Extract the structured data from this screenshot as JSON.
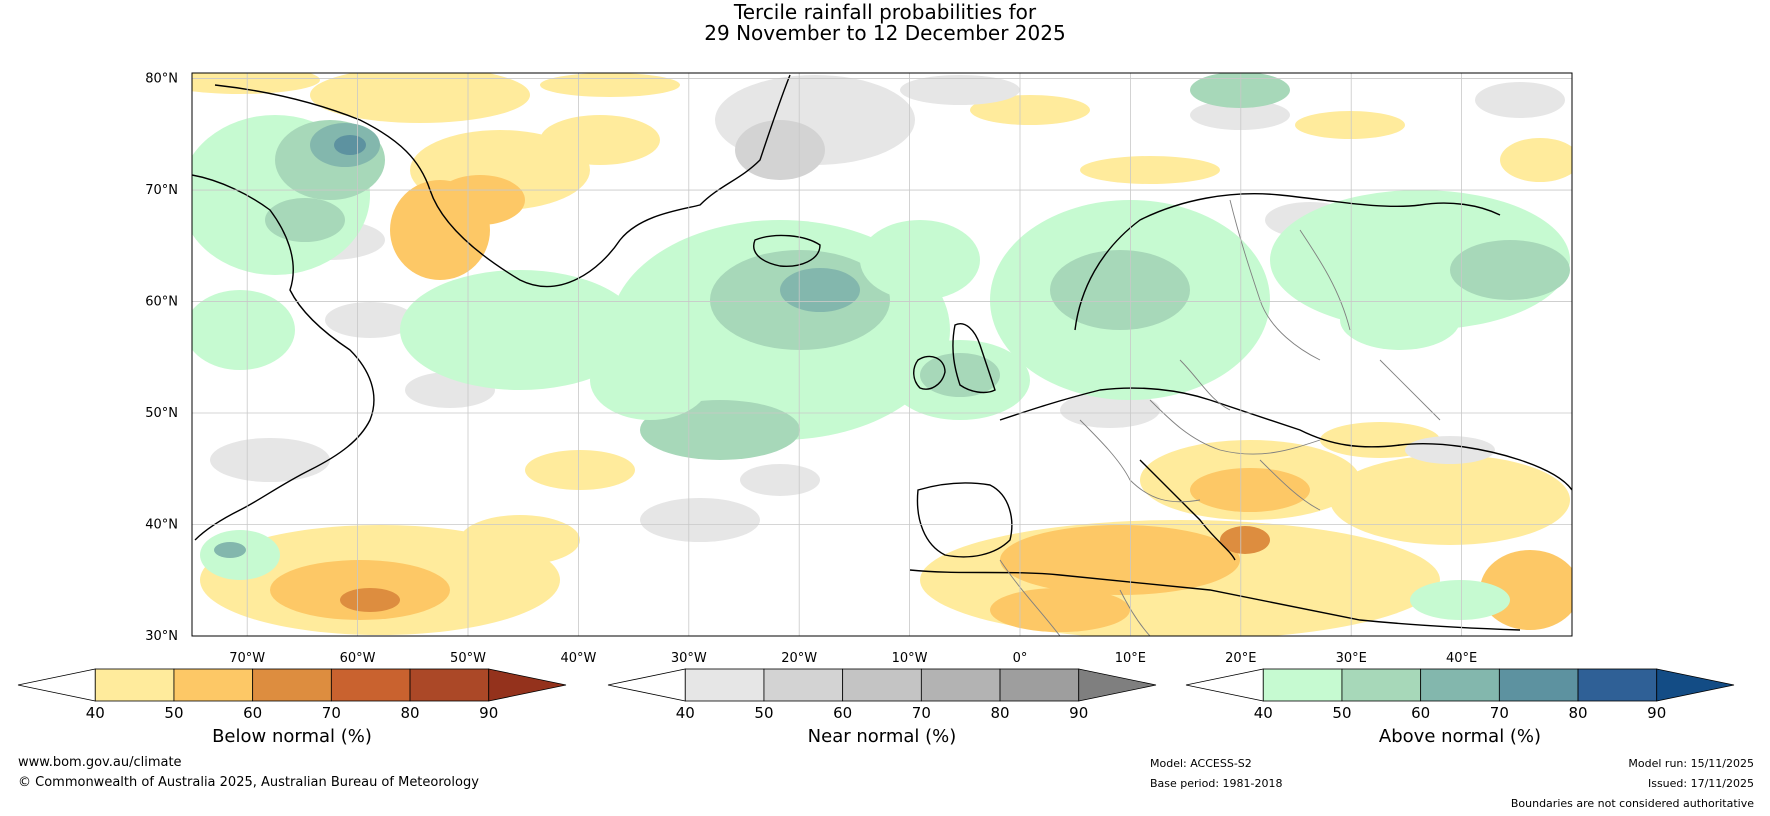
{
  "title": {
    "line1": "Tercile rainfall probabilities for",
    "line2": "29 November to 12 December 2025"
  },
  "lat_labels": [
    "80°N",
    "70°N",
    "60°N",
    "50°N",
    "40°N",
    "30°N"
  ],
  "lon_labels": [
    "70°W",
    "60°W",
    "50°W",
    "40°W",
    "30°W",
    "20°W",
    "10°W",
    "0°",
    "10°E",
    "20°E",
    "30°E",
    "40°E"
  ],
  "colorbars": {
    "below": {
      "title": "Below normal (%)",
      "ticks": [
        "40",
        "50",
        "60",
        "70",
        "80",
        "90"
      ],
      "colors": [
        "#ffffff",
        "#ffeb9c",
        "#fdc866",
        "#dd8d3f",
        "#c9622f",
        "#ab4827",
        "#94321c"
      ]
    },
    "near": {
      "title": "Near normal (%)",
      "ticks": [
        "40",
        "50",
        "60",
        "70",
        "80",
        "90"
      ],
      "colors": [
        "#ffffff",
        "#e6e6e6",
        "#d3d3d3",
        "#c4c4c4",
        "#b3b3b3",
        "#9e9e9e",
        "#7f7f7f"
      ]
    },
    "above": {
      "title": "Above normal (%)",
      "ticks": [
        "40",
        "50",
        "60",
        "70",
        "80",
        "90"
      ],
      "colors": [
        "#ffffff",
        "#c6fad1",
        "#a7d8b9",
        "#83b7ad",
        "#5d92a0",
        "#2f6096",
        "#134c85"
      ]
    }
  },
  "footer": {
    "website": "www.bom.gov.au/climate",
    "copyright": "© Commonwealth of Australia 2025, Australian Bureau of Meteorology",
    "model": "Model: ACCESS-S2",
    "base_period": "Base period: 1981-2018",
    "model_run": "Model run: 15/11/2025",
    "issued": "Issued: 17/11/2025",
    "disclaimer": "Boundaries are not considered authoritative"
  },
  "map_colors": {
    "land_line": "#000000",
    "border_line": "#808080",
    "grid_line": "#c8c8c8"
  }
}
